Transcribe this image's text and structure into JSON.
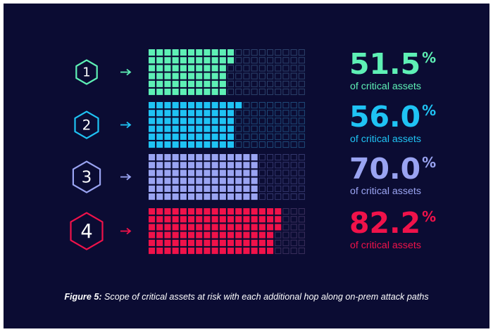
{
  "chart_data": {
    "type": "waffle",
    "unit": "%",
    "grid": {
      "columns": 20,
      "rows": 6
    },
    "series": [
      {
        "label": "1",
        "value": 51.5,
        "value_text": "51.5",
        "sublabel": "of critical assets",
        "color": "#5ef0b5",
        "arrow_color": "#5ef0b5",
        "hex_stroke": "#5ef0b5",
        "empty_color": "#2c416b"
      },
      {
        "label": "2",
        "value": 56.0,
        "value_text": "56.0",
        "sublabel": "of critical assets",
        "color": "#1fc3f4",
        "arrow_color": "#1fc3f4",
        "hex_stroke": "#1fc3f4",
        "empty_color": "#1f4a79"
      },
      {
        "label": "3",
        "value": 70.0,
        "value_text": "70.0",
        "sublabel": "of critical assets",
        "color": "#9aa4f2",
        "arrow_color": "#9aa4f2",
        "hex_stroke": "#9aa4f2",
        "empty_color": "#34386d"
      },
      {
        "label": "4",
        "value": 82.2,
        "value_text": "82.2",
        "sublabel": "of critical assets",
        "color": "#f0124a",
        "arrow_color": "#f0124a",
        "hex_stroke": "#f0124a",
        "empty_color": "#3a2f5d"
      }
    ]
  },
  "caption": {
    "bold": "Figure 5:",
    "text": "Scope of critical assets at risk with each additional hop along on-prem attack paths"
  }
}
